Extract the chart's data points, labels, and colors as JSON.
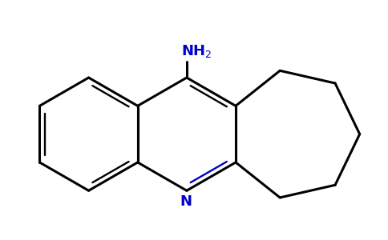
{
  "background_color": "#ffffff",
  "bond_color": "#000000",
  "n_color": "#0000cc",
  "lw": 2.2,
  "figsize": [
    4.84,
    3.0
  ],
  "dpi": 100
}
